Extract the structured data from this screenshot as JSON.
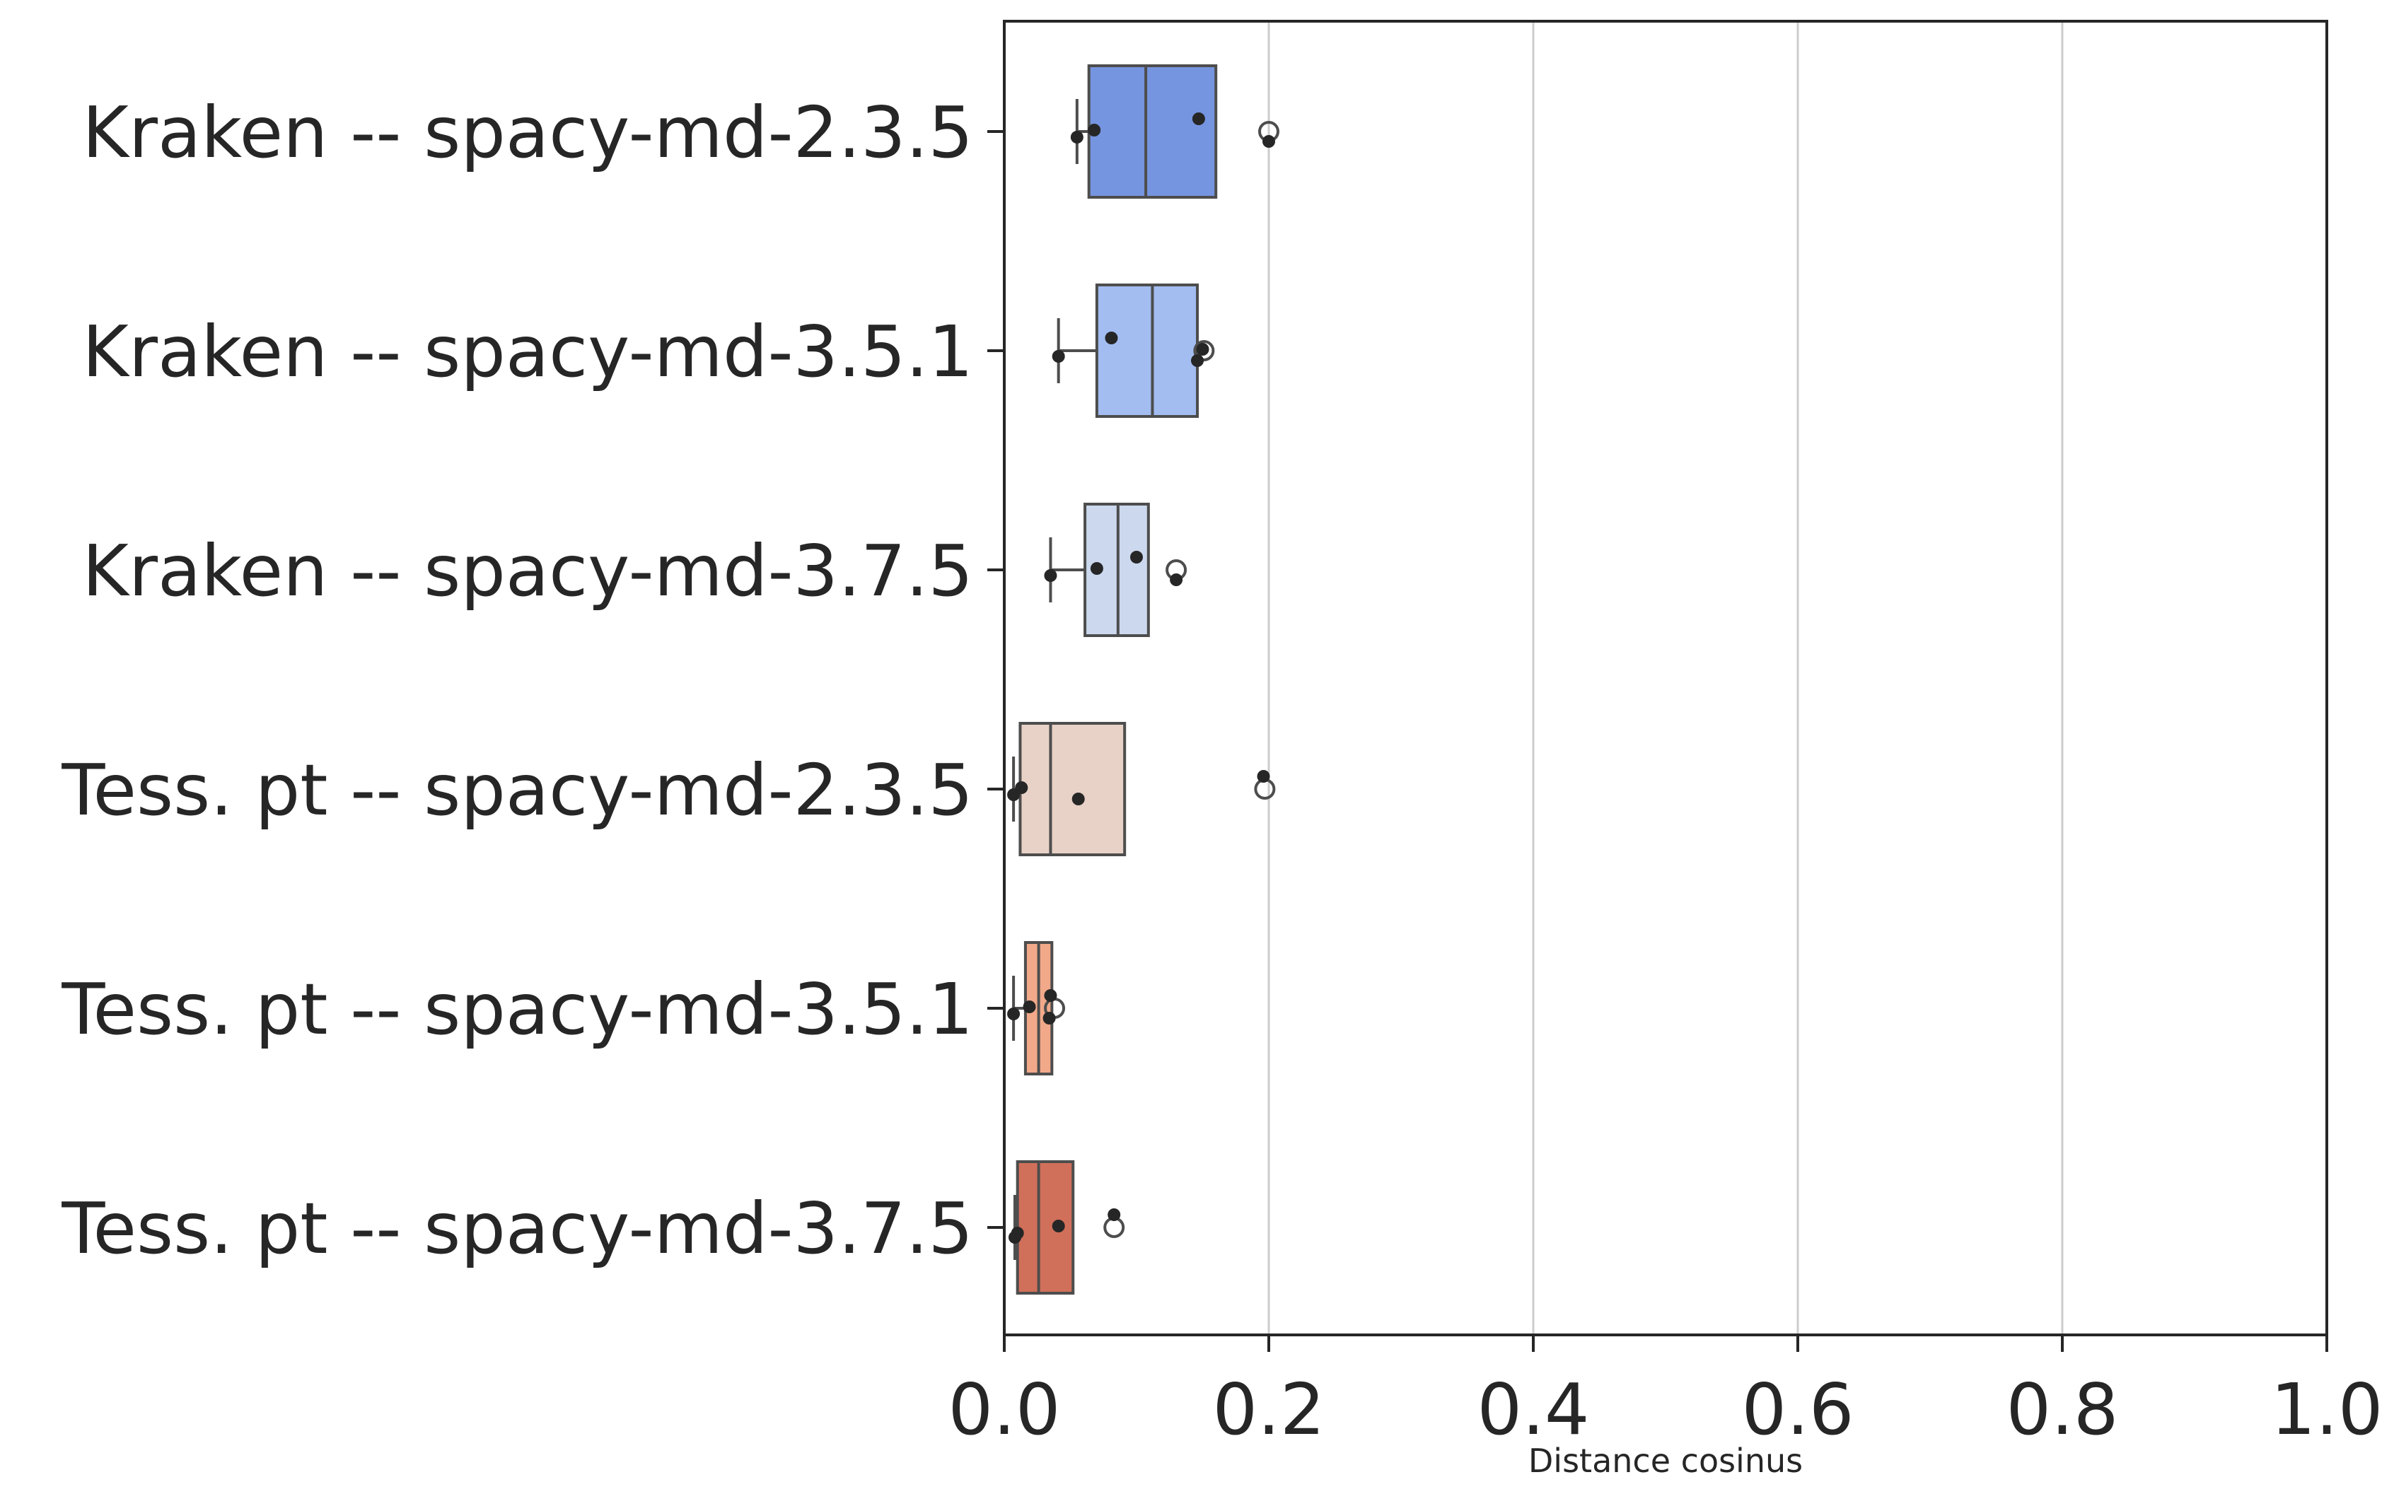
{
  "chart_data": {
    "type": "box",
    "orientation": "horizontal",
    "xlabel": "Distance cosinus",
    "xlim": [
      0.0,
      1.0
    ],
    "xticks": [
      0.0,
      0.2,
      0.4,
      0.6,
      0.8,
      1.0
    ],
    "xtick_labels": [
      "0.0",
      "0.2",
      "0.4",
      "0.6",
      "0.8",
      "1.0"
    ],
    "grid": "vertical",
    "categories": [
      "Kraken -- spacy-md-2.3.5",
      "Kraken -- spacy-md-3.5.1",
      "Kraken -- spacy-md-3.7.5",
      "Tess. pt -- spacy-md-2.3.5",
      "Tess. pt -- spacy-md-3.5.1",
      "Tess. pt -- spacy-md-3.7.5"
    ],
    "boxes": [
      {
        "whisker_low": 0.055,
        "q1": 0.064,
        "median": 0.107,
        "q3": 0.16,
        "whisker_high": 0.16,
        "outliers": [
          0.2
        ],
        "color": "#7695e0"
      },
      {
        "whisker_low": 0.041,
        "q1": 0.07,
        "median": 0.112,
        "q3": 0.146,
        "whisker_high": 0.146,
        "outliers": [
          0.151
        ],
        "color": "#a3bdf1"
      },
      {
        "whisker_low": 0.035,
        "q1": 0.061,
        "median": 0.086,
        "q3": 0.109,
        "whisker_high": 0.109,
        "outliers": [
          0.13
        ],
        "color": "#cbd8ee"
      },
      {
        "whisker_low": 0.007,
        "q1": 0.012,
        "median": 0.035,
        "q3": 0.091,
        "whisker_high": 0.091,
        "outliers": [
          0.197
        ],
        "color": "#e8d1c6"
      },
      {
        "whisker_low": 0.007,
        "q1": 0.016,
        "median": 0.026,
        "q3": 0.036,
        "whisker_high": 0.036,
        "outliers": [
          0.038
        ],
        "color": "#f1a98a"
      },
      {
        "whisker_low": 0.008,
        "q1": 0.01,
        "median": 0.026,
        "q3": 0.052,
        "whisker_high": 0.052,
        "outliers": [
          0.083
        ],
        "color": "#d1705a"
      }
    ],
    "points": [
      [
        0.147,
        0.055,
        0.068,
        0.2
      ],
      [
        0.081,
        0.041,
        0.15,
        0.146
      ],
      [
        0.1,
        0.035,
        0.07,
        0.13
      ],
      [
        0.196,
        0.007,
        0.013,
        0.056
      ],
      [
        0.035,
        0.007,
        0.019,
        0.034
      ],
      [
        0.083,
        0.01,
        0.041,
        0.008
      ]
    ]
  }
}
